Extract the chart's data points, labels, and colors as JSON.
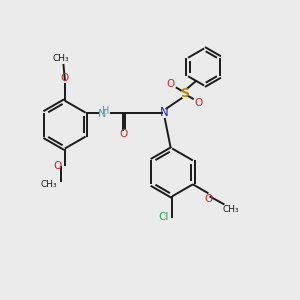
{
  "bg_color": "#ebebeb",
  "bond_color": "#1a1a1a",
  "bond_width": 1.4,
  "dbo": 0.055,
  "figsize": [
    3.0,
    3.0
  ],
  "dpi": 100,
  "xlim": [
    0,
    10
  ],
  "ylim": [
    0,
    10
  ],
  "colors": {
    "N": "#2222cc",
    "O": "#cc2222",
    "S": "#b8860b",
    "Cl": "#22aa44",
    "NH": "#5599bb",
    "C": "#1a1a1a"
  }
}
